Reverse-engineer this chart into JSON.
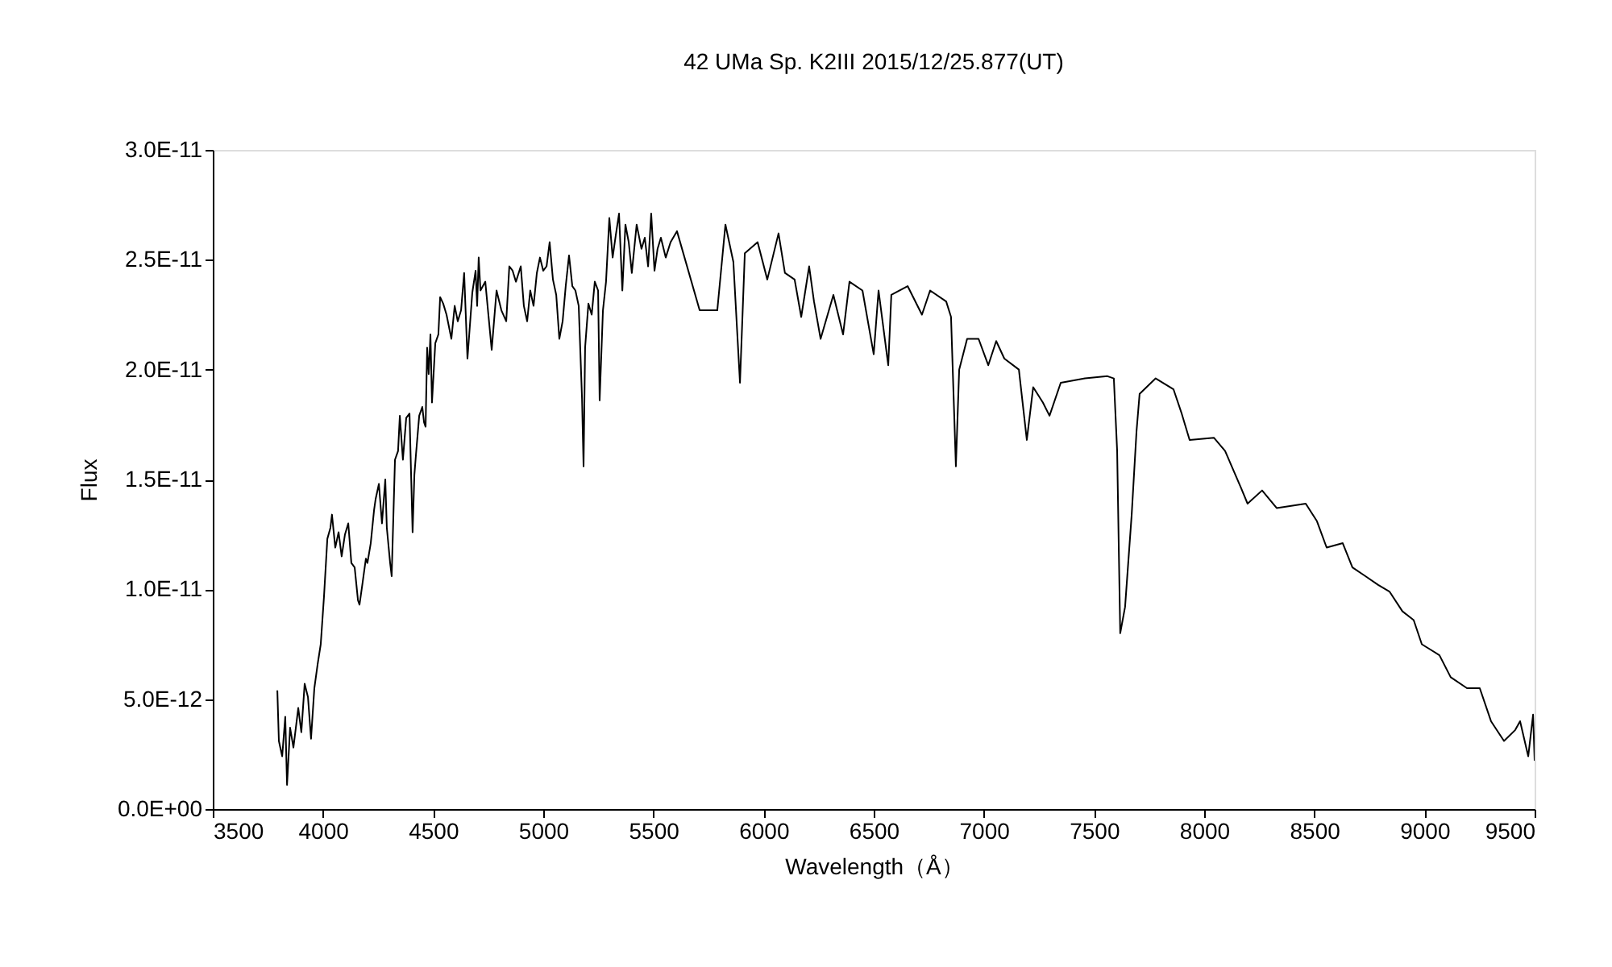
{
  "chart_data": {
    "type": "line",
    "title": "42 UMa   Sp. K2III   2015/12/25.877(UT)",
    "xlabel": "Wavelength（Å）",
    "ylabel": "Flux",
    "color": "#000000",
    "x": [
      3793,
      3800,
      3815,
      3829,
      3837,
      3851,
      3866,
      3888,
      3902,
      3917,
      3932,
      3946,
      3961,
      3976,
      3990,
      4005,
      4020,
      4034,
      4041,
      4056,
      4071,
      4085,
      4100,
      4115,
      4129,
      4144,
      4159,
      4166,
      4180,
      4195,
      4202,
      4217,
      4232,
      4239,
      4254,
      4268,
      4283,
      4290,
      4305,
      4312,
      4327,
      4341,
      4349,
      4363,
      4378,
      4393,
      4407,
      4415,
      4422,
      4437,
      4451,
      4459,
      4466,
      4473,
      4480,
      4488,
      4495,
      4510,
      4524,
      4532,
      4546,
      4561,
      4583,
      4598,
      4612,
      4627,
      4641,
      4656,
      4678,
      4693,
      4700,
      4707,
      4715,
      4737,
      4751,
      4766,
      4788,
      4810,
      4832,
      4846,
      4861,
      4876,
      4898,
      4912,
      4927,
      4941,
      4956,
      4971,
      4985,
      5000,
      5015,
      5029,
      5044,
      5059,
      5073,
      5088,
      5102,
      5117,
      5132,
      5146,
      5161,
      5176,
      5183,
      5190,
      5205,
      5220,
      5234,
      5249,
      5256,
      5271,
      5285,
      5300,
      5315,
      5329,
      5344,
      5359,
      5373,
      5388,
      5402,
      5424,
      5446,
      5461,
      5476,
      5490,
      5505,
      5519,
      5534,
      5556,
      5578,
      5607,
      5710,
      5790,
      5827,
      5863,
      5893,
      5915,
      5973,
      6017,
      6068,
      6097,
      6141,
      6171,
      6207,
      6229,
      6259,
      6317,
      6361,
      6390,
      6449,
      6500,
      6522,
      6566,
      6580,
      6654,
      6719,
      6756,
      6829,
      6851,
      6873,
      6888,
      6924,
      6976,
      7020,
      7056,
      7093,
      7159,
      7195,
      7224,
      7268,
      7298,
      7349,
      7459,
      7561,
      7590,
      7605,
      7619,
      7641,
      7671,
      7693,
      7707,
      7780,
      7861,
      7898,
      7934,
      8044,
      8095,
      8168,
      8197,
      8263,
      8329,
      8461,
      8512,
      8556,
      8629,
      8673,
      8732,
      8790,
      8841,
      8900,
      8951,
      8988,
      9068,
      9119,
      9193,
      9251,
      9302,
      9361,
      9412,
      9434,
      9471,
      9493,
      9500
    ],
    "values": [
      5.4e-12,
      3.1e-12,
      2.4e-12,
      4.2e-12,
      1.1e-12,
      3.7e-12,
      2.8e-12,
      4.6e-12,
      3.5e-12,
      5.7e-12,
      5.1e-12,
      3.2e-12,
      5.5e-12,
      6.6e-12,
      7.5e-12,
      9.7e-12,
      1.23e-11,
      1.28e-11,
      1.34e-11,
      1.19e-11,
      1.26e-11,
      1.15e-11,
      1.25e-11,
      1.3e-11,
      1.12e-11,
      1.1e-11,
      9.5e-12,
      9.3e-12,
      1.03e-11,
      1.14e-11,
      1.12e-11,
      1.21e-11,
      1.36e-11,
      1.41e-11,
      1.48e-11,
      1.3e-11,
      1.5e-11,
      1.28e-11,
      1.12e-11,
      1.06e-11,
      1.59e-11,
      1.63e-11,
      1.79e-11,
      1.59e-11,
      1.78e-11,
      1.8e-11,
      1.26e-11,
      1.52e-11,
      1.61e-11,
      1.79e-11,
      1.83e-11,
      1.76e-11,
      1.74e-11,
      2.1e-11,
      1.98e-11,
      2.16e-11,
      1.85e-11,
      2.12e-11,
      2.16e-11,
      2.33e-11,
      2.3e-11,
      2.25e-11,
      2.14e-11,
      2.29e-11,
      2.22e-11,
      2.27e-11,
      2.44e-11,
      2.05e-11,
      2.35e-11,
      2.45e-11,
      2.29e-11,
      2.51e-11,
      2.36e-11,
      2.4e-11,
      2.25e-11,
      2.09e-11,
      2.36e-11,
      2.27e-11,
      2.22e-11,
      2.47e-11,
      2.45e-11,
      2.4e-11,
      2.47e-11,
      2.29e-11,
      2.22e-11,
      2.36e-11,
      2.29e-11,
      2.44e-11,
      2.51e-11,
      2.45e-11,
      2.47e-11,
      2.58e-11,
      2.41e-11,
      2.34e-11,
      2.14e-11,
      2.22e-11,
      2.38e-11,
      2.52e-11,
      2.38e-11,
      2.36e-11,
      2.29e-11,
      1.87e-11,
      1.56e-11,
      2.1e-11,
      2.3e-11,
      2.25e-11,
      2.4e-11,
      2.36e-11,
      1.86e-11,
      2.27e-11,
      2.4e-11,
      2.69e-11,
      2.51e-11,
      2.61e-11,
      2.71e-11,
      2.36e-11,
      2.66e-11,
      2.58e-11,
      2.44e-11,
      2.66e-11,
      2.55e-11,
      2.6e-11,
      2.47e-11,
      2.71e-11,
      2.45e-11,
      2.55e-11,
      2.6e-11,
      2.51e-11,
      2.58e-11,
      2.63e-11,
      2.27e-11,
      2.27e-11,
      2.66e-11,
      2.49e-11,
      1.94e-11,
      2.53e-11,
      2.58e-11,
      2.41e-11,
      2.62e-11,
      2.44e-11,
      2.41e-11,
      2.24e-11,
      2.47e-11,
      2.31e-11,
      2.14e-11,
      2.34e-11,
      2.16e-11,
      2.4e-11,
      2.36e-11,
      2.07e-11,
      2.36e-11,
      2.02e-11,
      2.34e-11,
      2.38e-11,
      2.25e-11,
      2.36e-11,
      2.31e-11,
      2.24e-11,
      1.56e-11,
      2e-11,
      2.14e-11,
      2.14e-11,
      2.02e-11,
      2.13e-11,
      2.05e-11,
      2e-11,
      1.68e-11,
      1.92e-11,
      1.85e-11,
      1.79e-11,
      1.94e-11,
      1.96e-11,
      1.97e-11,
      1.96e-11,
      1.63e-11,
      8e-12,
      9.2e-12,
      1.34e-11,
      1.72e-11,
      1.89e-11,
      1.96e-11,
      1.91e-11,
      1.8e-11,
      1.68e-11,
      1.69e-11,
      1.63e-11,
      1.46e-11,
      1.39e-11,
      1.45e-11,
      1.37e-11,
      1.39e-11,
      1.31e-11,
      1.19e-11,
      1.21e-11,
      1.1e-11,
      1.06e-11,
      1.02e-11,
      9.9e-12,
      9e-12,
      8.6e-12,
      7.5e-12,
      7e-12,
      6e-12,
      5.5e-12,
      5.5e-12,
      4e-12,
      3.1e-12,
      3.6e-12,
      4e-12,
      2.4e-12,
      4.3e-12,
      2.2e-12
    ],
    "xlim": [
      3500,
      9500
    ],
    "xticks": [
      3500,
      4000,
      4500,
      5000,
      5500,
      6000,
      6500,
      7000,
      7500,
      8000,
      8500,
      9000,
      9500
    ],
    "ylim": [
      0,
      3e-11
    ],
    "yticks": [
      {
        "value": 0,
        "label": "0.0E+00"
      },
      {
        "value": 5e-12,
        "label": "5.0E-12"
      },
      {
        "value": 1e-11,
        "label": "1.0E-11"
      },
      {
        "value": 1.5e-11,
        "label": "1.5E-11"
      },
      {
        "value": 2e-11,
        "label": "2.0E-11"
      },
      {
        "value": 2.5e-11,
        "label": "2.5E-11"
      },
      {
        "value": 3e-11,
        "label": "3.0E-11"
      }
    ]
  }
}
